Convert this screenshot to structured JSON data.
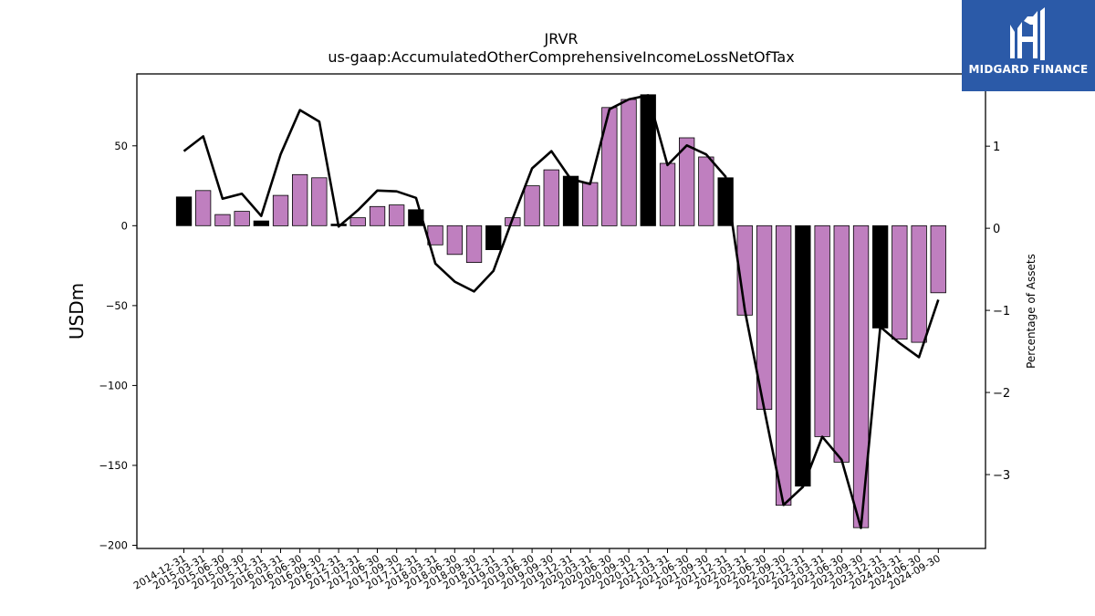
{
  "chart_data": {
    "type": "bar",
    "title": "JRVR",
    "subtitle": "us-gaap:AccumulatedOtherComprehensiveIncomeLossNetOfTax",
    "ylabel": "USDm",
    "ylabel_right": "Percentage of Assets",
    "ylim": [
      -202,
      95
    ],
    "ylim_right": [
      -3.9,
      1.88
    ],
    "yticks": [
      -200,
      -150,
      -100,
      -50,
      0,
      50
    ],
    "yticks_right": [
      -3,
      -2,
      -1,
      0,
      1
    ],
    "categories": [
      "2014-12-31",
      "2015-03-31",
      "2015-06-30",
      "2015-09-30",
      "2015-12-31",
      "2016-03-31",
      "2016-06-30",
      "2016-09-30",
      "2016-12-31",
      "2017-03-31",
      "2017-06-30",
      "2017-09-30",
      "2017-12-31",
      "2018-03-31",
      "2018-06-30",
      "2018-09-30",
      "2018-12-31",
      "2019-03-31",
      "2019-06-30",
      "2019-09-30",
      "2019-12-31",
      "2020-03-31",
      "2020-06-30",
      "2020-09-30",
      "2020-12-31",
      "2021-03-31",
      "2021-06-30",
      "2021-09-30",
      "2021-12-31",
      "2022-03-31",
      "2022-06-30",
      "2022-09-30",
      "2022-12-31",
      "2023-03-31",
      "2023-06-30",
      "2023-09-30",
      "2023-12-31",
      "2024-03-31",
      "2024-06-30",
      "2024-09-30"
    ],
    "series": [
      {
        "type": "bar",
        "values": [
          18,
          22,
          7,
          9,
          3,
          19,
          32,
          30,
          1,
          5,
          12,
          13,
          10,
          -12,
          -18,
          -23,
          -15,
          5,
          25,
          35,
          31,
          27,
          74,
          79,
          82,
          39,
          55,
          43,
          30,
          -56,
          -115,
          -175,
          -163,
          -132,
          -148,
          -189,
          -64,
          -71,
          -73,
          -42
        ],
        "highlight": [
          true,
          false,
          false,
          false,
          true,
          false,
          false,
          false,
          true,
          false,
          false,
          false,
          true,
          false,
          false,
          false,
          true,
          false,
          false,
          false,
          true,
          false,
          false,
          false,
          true,
          false,
          false,
          false,
          true,
          false,
          false,
          false,
          true,
          false,
          false,
          false,
          true,
          false,
          false,
          false
        ]
      },
      {
        "type": "line",
        "axis": "right",
        "values": [
          0.94,
          1.12,
          0.36,
          0.42,
          0.15,
          0.9,
          1.44,
          1.3,
          0.02,
          0.22,
          0.46,
          0.45,
          0.37,
          -0.43,
          -0.65,
          -0.77,
          -0.52,
          0.12,
          0.73,
          0.94,
          0.6,
          0.54,
          1.45,
          1.57,
          1.62,
          0.77,
          1.01,
          0.9,
          0.63,
          -1.0,
          -2.2,
          -3.37,
          -3.15,
          -2.54,
          -2.82,
          -3.65,
          -1.2,
          -1.4,
          -1.57,
          -0.87
        ]
      }
    ],
    "colors": {
      "bar": "#bf7fbf",
      "highlight": "#000000",
      "line": "#000000"
    },
    "grid": false
  },
  "logo": {
    "text": "MIDGARD FINANCE",
    "icon": "midgard-logo-icon",
    "color": "#2b5aa8"
  }
}
